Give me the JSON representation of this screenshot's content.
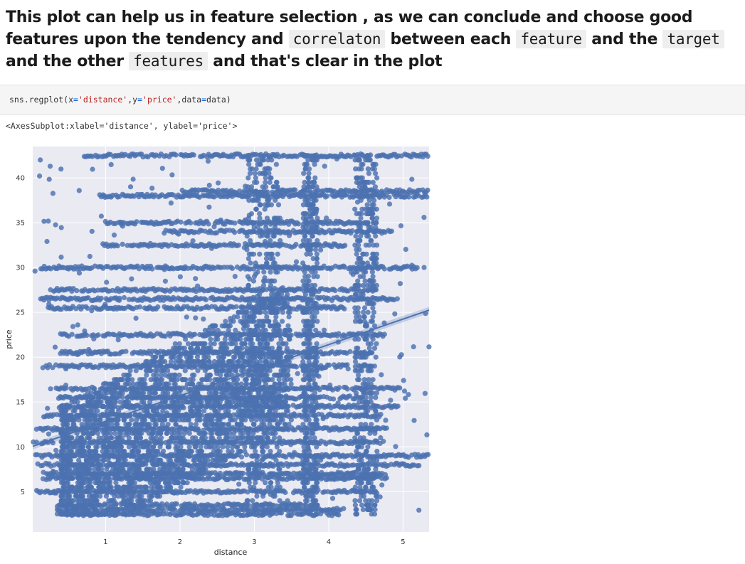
{
  "markdown": {
    "part1": "This plot can help us in feature selection , as we can conclude and choose good features upon the tendency and ",
    "code1": "correlaton",
    "part2": " between each ",
    "code2": "feature",
    "part3": " and the ",
    "code3": "target",
    "part4": " and the other ",
    "code4": "features",
    "part5": " and that's clear in the plot"
  },
  "code_cell": {
    "fn": "sns.regplot",
    "open": "(x",
    "eq1": "=",
    "arg_x": "'distance'",
    "sep1": ",y",
    "eq2": "=",
    "arg_y": "'price'",
    "sep2": ",data",
    "eq3": "=",
    "close": "data)"
  },
  "output_text": "<AxesSubplot:xlabel='distance', ylabel='price'>",
  "chart_data": {
    "type": "scatter",
    "xlabel": "distance",
    "ylabel": "price",
    "xlim": [
      0.02,
      5.35
    ],
    "ylim": [
      0.5,
      43.5
    ],
    "x_ticks": [
      1,
      2,
      3,
      4,
      5
    ],
    "y_ticks": [
      5,
      10,
      15,
      20,
      25,
      30,
      35,
      40
    ],
    "grid": true,
    "point_color": "#4c72b0",
    "background_color": "#eaeaf2",
    "regression_line": {
      "slope": 2.85,
      "intercept": 10.0
    },
    "price_levels": [
      2.5,
      3.0,
      3.5,
      5.0,
      6.5,
      7.0,
      8.0,
      9.0,
      10.5,
      12.0,
      13.5,
      14.5,
      15.5,
      16.5,
      19.0,
      20.5,
      22.5,
      25.5,
      26.5,
      27.5,
      30.0,
      32.5,
      34.0,
      35.0,
      38.0,
      38.5,
      42.5
    ]
  }
}
